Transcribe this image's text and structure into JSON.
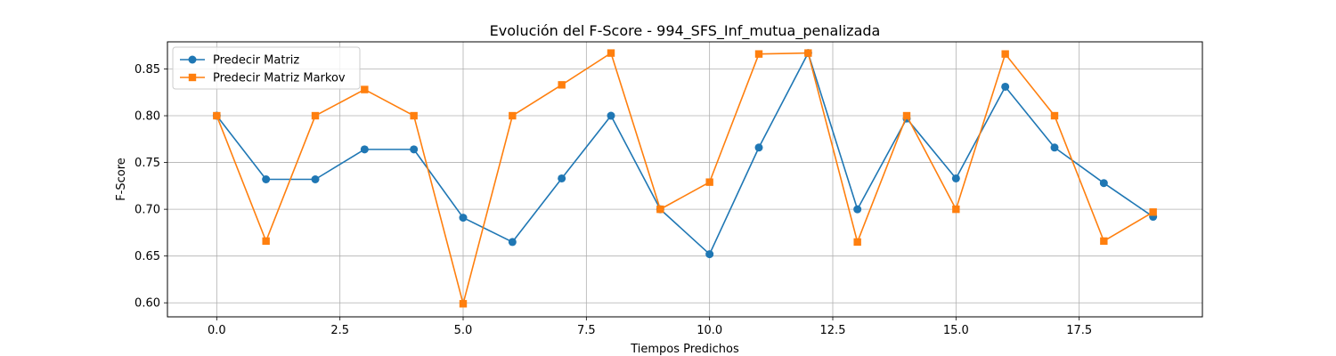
{
  "chart_data": {
    "type": "line",
    "title": "Evolución del F-Score - 994_SFS_Inf_mutua_penalizada",
    "xlabel": "Tiempos Predichos",
    "ylabel": "F-Score",
    "xlim": [
      -1.0,
      20.0
    ],
    "ylim": [
      0.585,
      0.879
    ],
    "xticks": [
      0.0,
      2.5,
      5.0,
      7.5,
      10.0,
      12.5,
      15.0,
      17.5
    ],
    "xtick_labels": [
      "0.0",
      "2.5",
      "5.0",
      "7.5",
      "10.0",
      "12.5",
      "15.0",
      "17.5"
    ],
    "yticks": [
      0.6,
      0.65,
      0.7,
      0.75,
      0.8,
      0.85
    ],
    "ytick_labels": [
      "0.60",
      "0.65",
      "0.70",
      "0.75",
      "0.80",
      "0.85"
    ],
    "grid": true,
    "legend_position": "top-left",
    "x": [
      0,
      1,
      2,
      3,
      4,
      5,
      6,
      7,
      8,
      9,
      10,
      11,
      12,
      13,
      14,
      15,
      16,
      17,
      18,
      19
    ],
    "series": [
      {
        "name": "Predecir Matriz",
        "color": "#1f77b4",
        "marker": "circle",
        "values": [
          0.8,
          0.732,
          0.732,
          0.764,
          0.764,
          0.691,
          0.665,
          0.733,
          0.8,
          0.7,
          0.652,
          0.766,
          0.867,
          0.7,
          0.797,
          0.733,
          0.831,
          0.766,
          0.728,
          0.692
        ]
      },
      {
        "name": "Predecir Matriz Markov",
        "color": "#ff7f0e",
        "marker": "square",
        "values": [
          0.8,
          0.666,
          0.8,
          0.828,
          0.8,
          0.599,
          0.8,
          0.833,
          0.867,
          0.7,
          0.729,
          0.866,
          0.867,
          0.665,
          0.8,
          0.7,
          0.866,
          0.8,
          0.666,
          0.697
        ]
      }
    ]
  }
}
